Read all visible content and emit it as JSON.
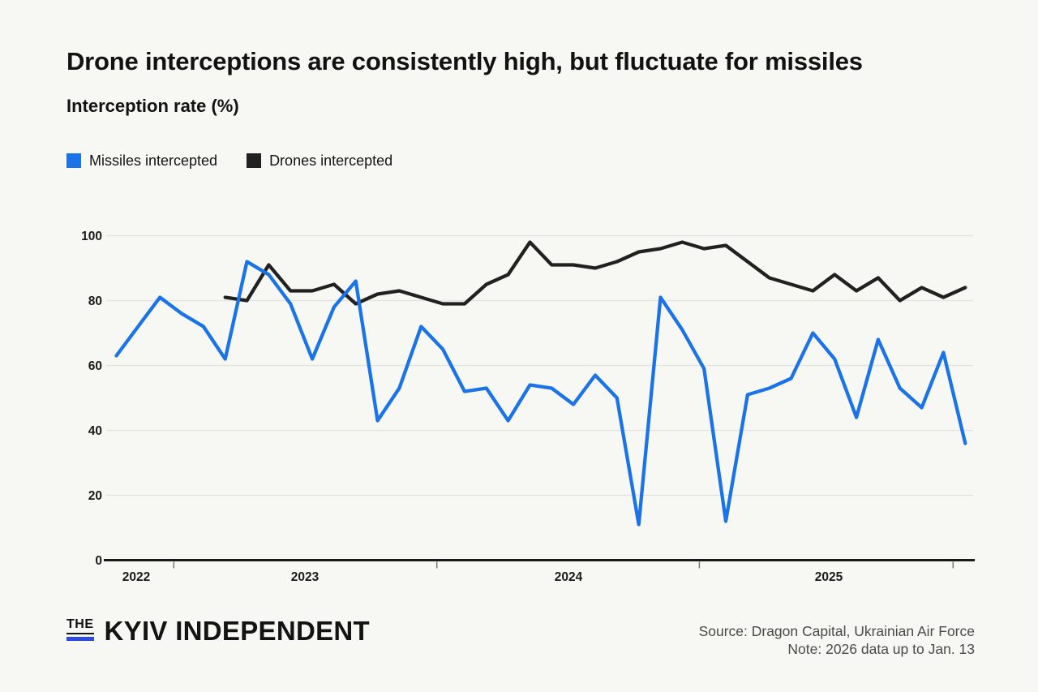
{
  "page": {
    "background": "#f7f7f4"
  },
  "header": {
    "title": "Drone interceptions are consistently high, but fluctuate for missiles",
    "subtitle": "Interception rate (%)"
  },
  "legend": [
    {
      "label": "Missiles intercepted",
      "color": "#1a73e8"
    },
    {
      "label": "Drones intercepted",
      "color": "#212121"
    }
  ],
  "chart_data": {
    "type": "line",
    "title": "Drone interceptions are consistently high, but fluctuate for missiles",
    "ylabel": "Interception rate (%)",
    "grid": true,
    "legend_position": "top-left",
    "x_tick_labels": [
      "2022",
      "2023",
      "2024",
      "2025"
    ],
    "y_ticks": [
      0,
      20,
      40,
      60,
      80,
      100
    ],
    "ylim": [
      0,
      100
    ],
    "x_unit": "month",
    "x_range": [
      "Oct 2022",
      "Jan 2026"
    ],
    "series": [
      {
        "name": "Drones intercepted",
        "color": "#212121",
        "start_month": "2023-03",
        "values": [
          81,
          80,
          91,
          83,
          83,
          85,
          79,
          82,
          83,
          81,
          79,
          79,
          85,
          88,
          98,
          91,
          91,
          90,
          92,
          95,
          96,
          98,
          96,
          97,
          92,
          87,
          85,
          83,
          88,
          83,
          87,
          80,
          84,
          81,
          84
        ]
      },
      {
        "name": "Missiles intercepted",
        "color": "#1a73e8",
        "start_month": "2022-10",
        "values": [
          63,
          72,
          81,
          76,
          72,
          62,
          92,
          88,
          79,
          62,
          78,
          86,
          43,
          53,
          72,
          65,
          52,
          53,
          43,
          54,
          53,
          48,
          57,
          50,
          11,
          81,
          71,
          59,
          12,
          51,
          53,
          56,
          70,
          62,
          44,
          68,
          53,
          47,
          64,
          36
        ]
      }
    ]
  },
  "footer": {
    "logo": {
      "the": "THE",
      "wordmark": "KYIV INDEPENDENT",
      "bar_color": "#2b4be0"
    },
    "source_line1": "Source: Dragon Capital, Ukrainian Air Force",
    "source_line2": "Note: 2026 data up to Jan. 13"
  }
}
